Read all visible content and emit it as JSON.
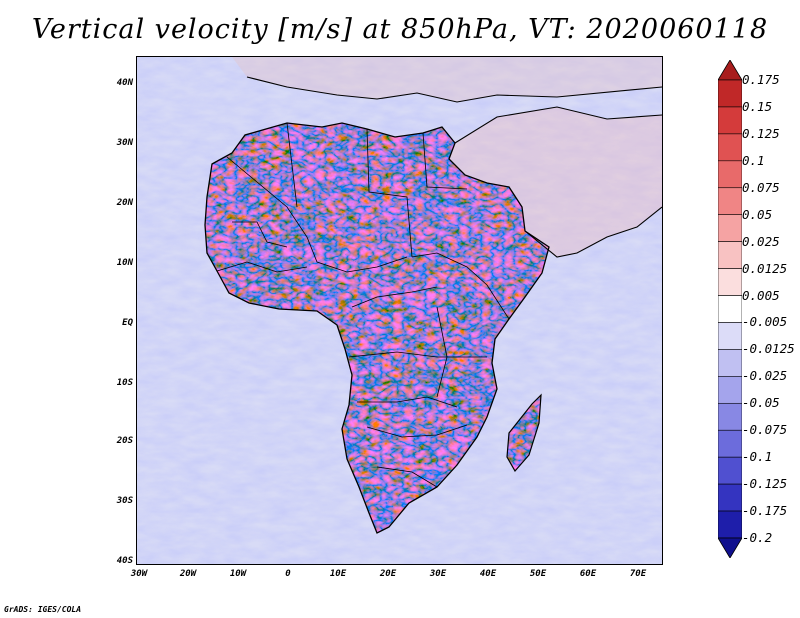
{
  "title": "Vertical velocity [m/s] at 850hPa, VT: 2020060118",
  "footer": "GrADS: IGES/COLA",
  "lat_labels": [
    "40N",
    "30N",
    "20N",
    "10N",
    "EQ",
    "10S",
    "20S",
    "30S",
    "40S"
  ],
  "lon_labels": [
    "30W",
    "20W",
    "10W",
    "0",
    "10E",
    "20E",
    "30E",
    "40E",
    "50E",
    "60E",
    "70E"
  ],
  "colorbar": {
    "labels": [
      "0.175",
      "0.15",
      "0.125",
      "0.1",
      "0.075",
      "0.05",
      "0.025",
      "0.0125",
      "0.005",
      "-0.005",
      "-0.0125",
      "-0.025",
      "-0.05",
      "-0.075",
      "-0.1",
      "-0.125",
      "-0.175",
      "-0.2"
    ],
    "colors": [
      "#a81d1d",
      "#c02828",
      "#d43b3b",
      "#e05252",
      "#e86a6a",
      "#f08585",
      "#f5a3a3",
      "#f8c2c2",
      "#fbdede",
      "#ffffff",
      "#dcdcf8",
      "#c0c0f2",
      "#a4a4ec",
      "#8888e4",
      "#6c6cdc",
      "#5050d0",
      "#3434c0",
      "#1e1eaa",
      "#10108e"
    ]
  },
  "colors": {
    "ocean_blue": "#c9cdf2",
    "land_red": "#d64545",
    "land_blue": "#5a5ad6",
    "border": "#000000"
  }
}
